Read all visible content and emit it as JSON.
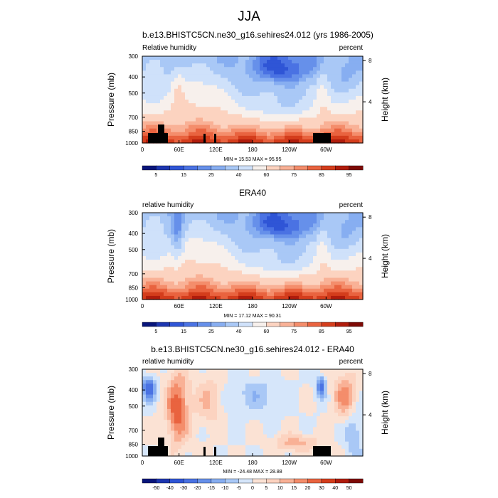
{
  "figure_title": "JJA",
  "chart_data": [
    {
      "type": "heatmap",
      "title": "b.e13.BHISTC5CN.ne30_g16.sehires24.012 (yrs 1986-2005)",
      "left_label": "Relative humidity",
      "right_label": "percent",
      "ylabel": "Pressure (mb)",
      "ylabel_right": "Height (km)",
      "x_ticks": [
        "0",
        "60E",
        "120E",
        "180",
        "120W",
        "60W"
      ],
      "y_ticks": [
        "300",
        "400",
        "500",
        "700",
        "850",
        "1000"
      ],
      "y_ticks_right": [
        "8",
        "4"
      ],
      "ylim": [
        1000,
        300
      ],
      "xlim": [
        0,
        360
      ],
      "stats": "MIN = 15.53  MAX = 95.95",
      "min": 15.53,
      "max": 95.95,
      "colorbar": {
        "levels": [
          5,
          10,
          15,
          20,
          25,
          30,
          40,
          50,
          60,
          70,
          75,
          80,
          85,
          90,
          95
        ],
        "labels": [
          "5",
          "15",
          "25",
          "40",
          "60",
          "75",
          "85",
          "95"
        ],
        "colors": [
          "#08157a",
          "#1d36b0",
          "#2f55d6",
          "#4a72e3",
          "#6690ea",
          "#87aef1",
          "#a9c8f6",
          "#cfe1fa",
          "#f7f0ec",
          "#fcd3c0",
          "#f9b196",
          "#f48d6b",
          "#e9633f",
          "#d43d1c",
          "#b01c0c",
          "#7d0a05"
        ]
      },
      "grid": false
    },
    {
      "type": "heatmap",
      "title": "ERA40",
      "left_label": "relative humidity",
      "right_label": "percent",
      "ylabel": "Pressure (mb)",
      "ylabel_right": "Height (km)",
      "x_ticks": [
        "0",
        "60E",
        "120E",
        "180",
        "120W",
        "60W"
      ],
      "y_ticks": [
        "300",
        "400",
        "500",
        "700",
        "850",
        "1000"
      ],
      "y_ticks_right": [
        "8",
        "4"
      ],
      "ylim": [
        1000,
        300
      ],
      "xlim": [
        0,
        360
      ],
      "stats": "MIN = 17.12  MAX = 90.31",
      "min": 17.12,
      "max": 90.31,
      "colorbar": {
        "levels": [
          5,
          10,
          15,
          20,
          25,
          30,
          40,
          50,
          60,
          70,
          75,
          80,
          85,
          90,
          95
        ],
        "labels": [
          "5",
          "15",
          "25",
          "40",
          "60",
          "75",
          "85",
          "95"
        ],
        "colors": [
          "#08157a",
          "#1d36b0",
          "#2f55d6",
          "#4a72e3",
          "#6690ea",
          "#87aef1",
          "#a9c8f6",
          "#cfe1fa",
          "#f7f0ec",
          "#fcd3c0",
          "#f9b196",
          "#f48d6b",
          "#e9633f",
          "#d43d1c",
          "#b01c0c",
          "#7d0a05"
        ]
      },
      "grid": false
    },
    {
      "type": "heatmap",
      "title": "b.e13.BHISTC5CN.ne30_g16.sehires24.012 - ERA40",
      "left_label": "relative humidity",
      "right_label": "percent",
      "ylabel": "Pressure (mb)",
      "ylabel_right": "Height (km)",
      "x_ticks": [
        "0",
        "60E",
        "120E",
        "180",
        "120W",
        "60W"
      ],
      "y_ticks": [
        "300",
        "400",
        "500",
        "700",
        "850",
        "1000"
      ],
      "y_ticks_right": [
        "8",
        "4"
      ],
      "ylim": [
        1000,
        300
      ],
      "xlim": [
        0,
        360
      ],
      "stats": "MIN = -24.48  MAX = 28.88",
      "min": -24.48,
      "max": 28.88,
      "colorbar": {
        "levels": [
          -50,
          -40,
          -30,
          -20,
          -15,
          -10,
          -5,
          0,
          5,
          10,
          15,
          20,
          30,
          40,
          50
        ],
        "labels": [
          "-50",
          "-40",
          "-30",
          "-20",
          "-15",
          "-10",
          "-5",
          "0",
          "5",
          "10",
          "15",
          "20",
          "30",
          "40",
          "50"
        ],
        "colors": [
          "#08157a",
          "#1d36b0",
          "#2f55d6",
          "#4a72e3",
          "#6690ea",
          "#87aef1",
          "#a9c8f6",
          "#d6e6fa",
          "#fbe2d4",
          "#fcd3c0",
          "#f9b196",
          "#f48d6b",
          "#e9633f",
          "#d43d1c",
          "#b01c0c",
          "#7d0a05"
        ]
      },
      "grid": false
    }
  ]
}
